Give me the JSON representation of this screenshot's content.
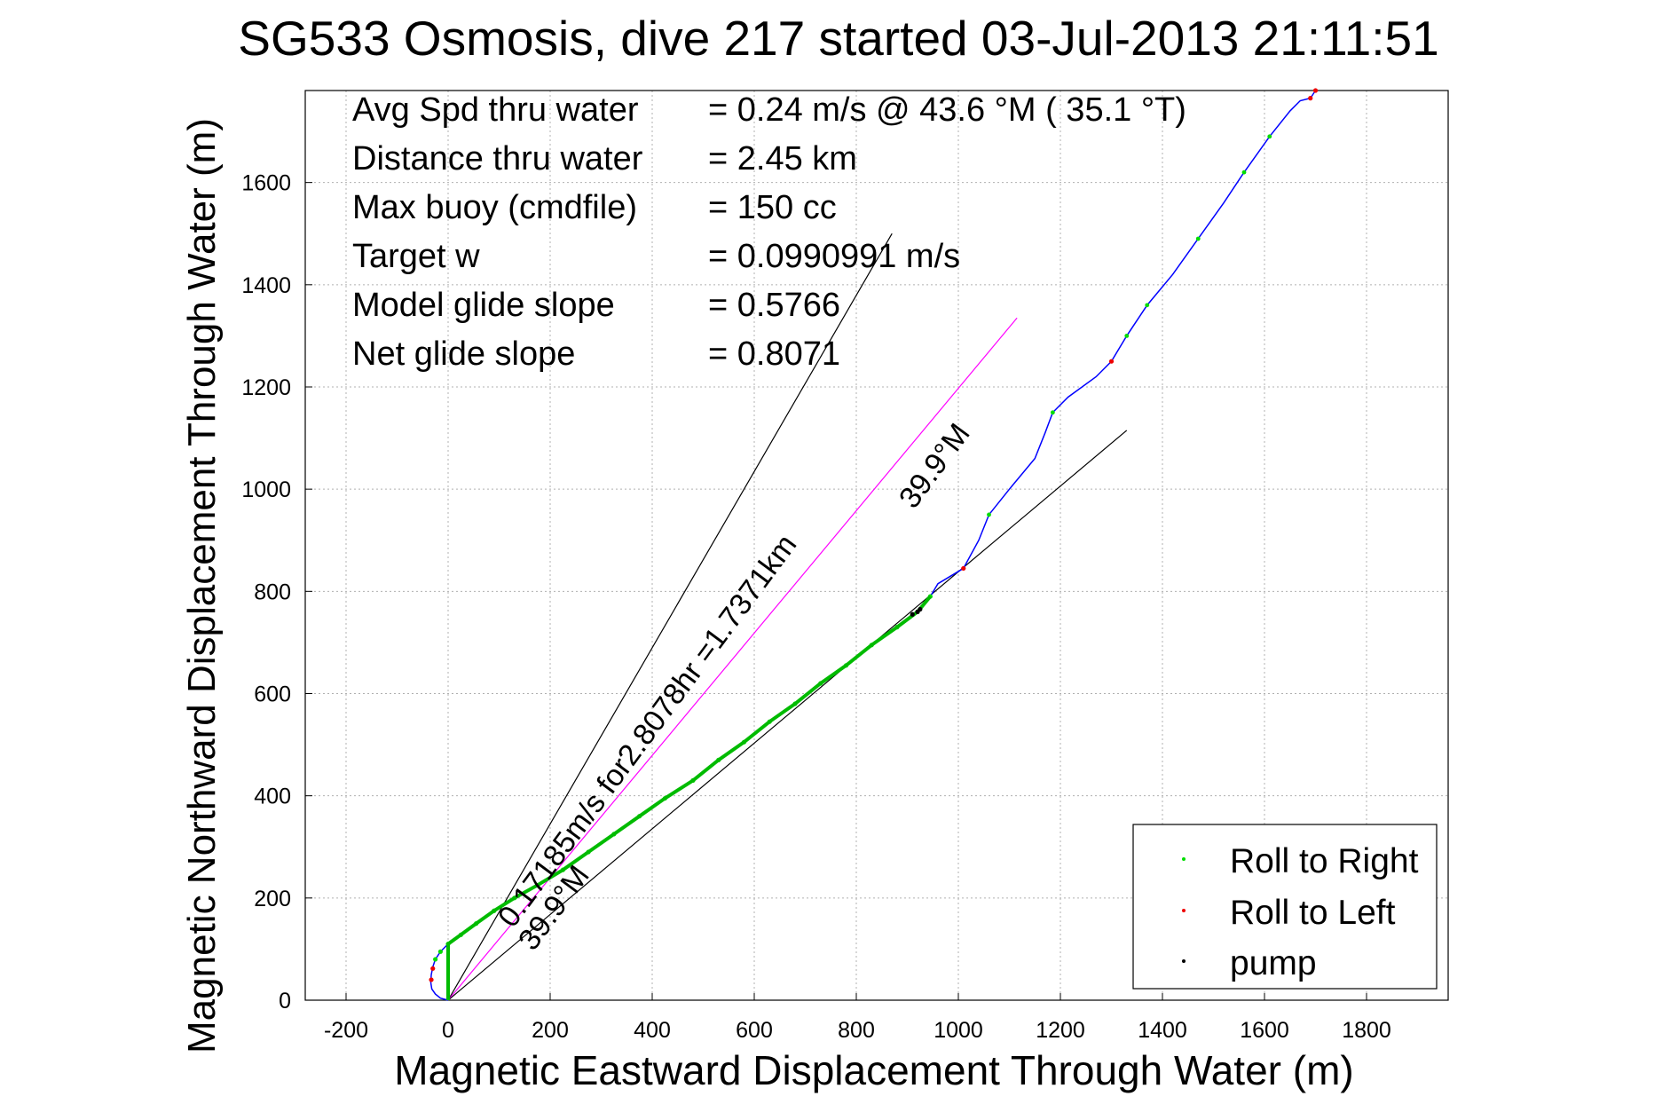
{
  "chart_data": {
    "type": "scatter",
    "title": "SG533 Osmosis, dive 217 started 03-Jul-2013 21:11:51",
    "xlabel": "Magnetic Eastward Displacement Through Water (m)",
    "ylabel": "Magnetic Northward Displacement Through Water (m)",
    "xlim": [
      -280,
      1960
    ],
    "ylim": [
      0,
      1780
    ],
    "xticks": [
      -200,
      0,
      200,
      400,
      600,
      800,
      1000,
      1200,
      1400,
      1600,
      1800
    ],
    "yticks": [
      0,
      200,
      400,
      600,
      800,
      1000,
      1200,
      1400,
      1600
    ],
    "grid": true,
    "legend_position": "bottom-right",
    "stats": [
      {
        "label": "Avg Spd thru water",
        "value": "=  0.24 m/s @  43.6 °M ( 35.1 °T)"
      },
      {
        "label": "Distance thru water",
        "value": "=  2.45 km"
      },
      {
        "label": "Max buoy (cmdfile)",
        "value": "= 150 cc"
      },
      {
        "label": "Target w",
        "value": "= 0.0990991 m/s"
      },
      {
        "label": "Model glide slope",
        "value": "= 0.5766"
      },
      {
        "label": "Net glide slope",
        "value": "= 0.8071"
      }
    ],
    "annotations": {
      "current_text": "0.17185m/s for2.8078hr =1.7371km",
      "heading_upper": "39.9°M",
      "heading_lower": "39.9°M"
    },
    "series": [
      {
        "name": "Roll to Right",
        "color": "#00dd00"
      },
      {
        "name": "Roll to Left",
        "color": "#ee0000"
      },
      {
        "name": "pump",
        "color": "#000000"
      }
    ],
    "track": [
      [
        0,
        0
      ],
      [
        -15,
        4
      ],
      [
        -25,
        12
      ],
      [
        -32,
        22
      ],
      [
        -34,
        35
      ],
      [
        -33,
        50
      ],
      [
        -30,
        65
      ],
      [
        -25,
        80
      ],
      [
        -15,
        95
      ],
      [
        0,
        110
      ],
      [
        25,
        128
      ],
      [
        55,
        150
      ],
      [
        90,
        175
      ],
      [
        130,
        200
      ],
      [
        175,
        225
      ],
      [
        225,
        255
      ],
      [
        275,
        290
      ],
      [
        325,
        325
      ],
      [
        375,
        360
      ],
      [
        425,
        395
      ],
      [
        480,
        430
      ],
      [
        530,
        470
      ],
      [
        580,
        505
      ],
      [
        630,
        545
      ],
      [
        680,
        580
      ],
      [
        730,
        620
      ],
      [
        780,
        655
      ],
      [
        830,
        695
      ],
      [
        880,
        730
      ],
      [
        920,
        760
      ],
      [
        945,
        790
      ],
      [
        960,
        815
      ],
      [
        985,
        830
      ],
      [
        1010,
        845
      ],
      [
        1040,
        900
      ],
      [
        1060,
        950
      ],
      [
        1100,
        1000
      ],
      [
        1150,
        1060
      ],
      [
        1170,
        1110
      ],
      [
        1185,
        1150
      ],
      [
        1215,
        1180
      ],
      [
        1270,
        1220
      ],
      [
        1300,
        1250
      ],
      [
        1330,
        1300
      ],
      [
        1370,
        1360
      ],
      [
        1420,
        1420
      ],
      [
        1470,
        1490
      ],
      [
        1520,
        1560
      ],
      [
        1560,
        1620
      ],
      [
        1610,
        1690
      ],
      [
        1650,
        1740
      ],
      [
        1670,
        1760
      ],
      [
        1690,
        1765
      ],
      [
        1700,
        1780
      ]
    ],
    "track_colors": {
      "main": "#0000ff",
      "green": "#00bb00",
      "magenta": "#ff00ff"
    },
    "lines": [
      {
        "kind": "black",
        "from": [
          0,
          0
        ],
        "to": [
          870,
          1500
        ]
      },
      {
        "kind": "magenta",
        "from": [
          0,
          0
        ],
        "to": [
          1115,
          1335
        ]
      },
      {
        "kind": "black",
        "from": [
          0,
          0
        ],
        "to": [
          1330,
          1115
        ]
      }
    ]
  }
}
